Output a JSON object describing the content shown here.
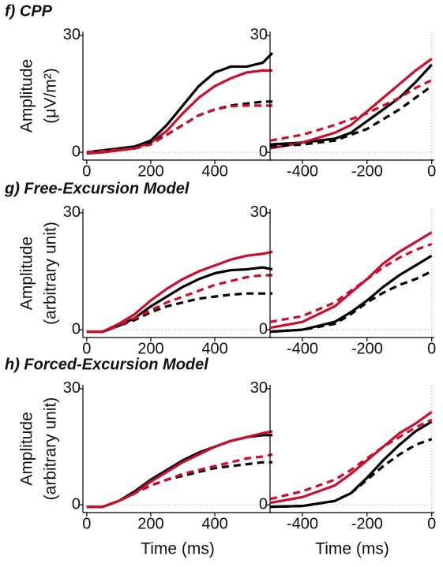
{
  "chart_data": [
    {
      "type": "line",
      "title": "f) CPP",
      "ylabel": [
        "Amplitude",
        "(μV/m²)"
      ],
      "x": [
        0,
        50,
        100,
        150,
        200,
        250,
        300,
        350,
        400,
        450,
        500,
        550,
        580
      ],
      "xlim": [
        -12,
        580
      ],
      "xticks": [
        0,
        200,
        400
      ],
      "ylim": [
        -2,
        31
      ],
      "yticks": [
        0,
        30
      ],
      "zero_line": [
        "y"
      ],
      "series": [
        {
          "color": "#000000",
          "dashed": false,
          "values": [
            0,
            0.5,
            1,
            1.5,
            3,
            7,
            12,
            17,
            20.5,
            22,
            22,
            23,
            25.5
          ]
        },
        {
          "color": "#c8102e",
          "dashed": false,
          "values": [
            -0.3,
            0,
            0.5,
            1,
            2.5,
            5.5,
            10,
            14,
            17,
            19,
            20.5,
            21,
            21
          ]
        },
        {
          "color": "#000000",
          "dashed": true,
          "values": [
            0,
            0.3,
            0.7,
            1,
            2.5,
            4.5,
            7,
            9.5,
            11,
            12,
            12.5,
            13,
            13
          ]
        },
        {
          "color": "#c8102e",
          "dashed": true,
          "values": [
            0,
            0.3,
            0.7,
            1,
            2,
            4.5,
            7,
            9.5,
            11,
            11.8,
            12,
            12,
            12
          ]
        }
      ]
    },
    {
      "type": "line",
      "x": [
        -500,
        -400,
        -300,
        -250,
        -200,
        -150,
        -100,
        -50,
        0
      ],
      "xlim": [
        -500,
        8
      ],
      "xticks": [
        -400,
        -200,
        0
      ],
      "ylim": [
        -2,
        31
      ],
      "yticks": [
        0,
        30
      ],
      "zero_line": [
        "x",
        "y"
      ],
      "series": [
        {
          "color": "#000000",
          "dashed": false,
          "values": [
            2,
            2.5,
            3.5,
            5,
            8,
            11,
            14,
            18,
            22.5
          ]
        },
        {
          "color": "#c8102e",
          "dashed": false,
          "values": [
            1,
            2.5,
            5,
            7,
            10.5,
            14,
            17.5,
            21,
            24
          ]
        },
        {
          "color": "#000000",
          "dashed": true,
          "values": [
            1.5,
            2,
            3,
            4.5,
            6,
            8.5,
            11,
            14,
            17
          ]
        },
        {
          "color": "#c8102e",
          "dashed": true,
          "values": [
            3,
            4.5,
            7,
            8.5,
            10,
            12,
            14,
            16.5,
            18.5
          ]
        }
      ]
    },
    {
      "type": "line",
      "title": "g) Free-Excursion Model",
      "ylabel": [
        "Amplitude",
        "(arbitrary unit)"
      ],
      "x": [
        0,
        50,
        100,
        150,
        200,
        250,
        300,
        350,
        400,
        450,
        500,
        550,
        580
      ],
      "xlim": [
        -12,
        580
      ],
      "xticks": [
        0,
        200,
        400
      ],
      "ylim": [
        -2,
        31
      ],
      "yticks": [
        0,
        30
      ],
      "zero_line": [
        "y"
      ],
      "series": [
        {
          "color": "#000000",
          "dashed": false,
          "values": [
            -0.5,
            -0.5,
            1,
            3,
            6,
            8.5,
            11,
            13,
            14.5,
            15.3,
            15.5,
            16,
            15.5
          ]
        },
        {
          "color": "#c8102e",
          "dashed": false,
          "values": [
            -0.5,
            -0.5,
            1.5,
            4,
            7.5,
            10.5,
            13,
            15,
            16.5,
            18,
            19,
            19.5,
            20
          ]
        },
        {
          "color": "#000000",
          "dashed": true,
          "values": [
            -0.5,
            -0.5,
            1,
            2.5,
            4.5,
            6,
            7,
            8,
            8.5,
            9,
            9.3,
            9.3,
            9.3
          ]
        },
        {
          "color": "#c8102e",
          "dashed": true,
          "values": [
            -0.5,
            -0.5,
            1,
            3,
            5,
            7,
            8.5,
            10,
            11.5,
            12.5,
            13.5,
            14,
            14
          ]
        }
      ]
    },
    {
      "type": "line",
      "x": [
        -500,
        -400,
        -300,
        -250,
        -200,
        -150,
        -100,
        -50,
        0
      ],
      "xlim": [
        -500,
        8
      ],
      "xticks": [
        -400,
        -200,
        0
      ],
      "ylim": [
        -2,
        31
      ],
      "yticks": [
        0,
        30
      ],
      "zero_line": [
        "x",
        "y"
      ],
      "series": [
        {
          "color": "#000000",
          "dashed": false,
          "values": [
            -0.5,
            0,
            2,
            4.5,
            7.5,
            11,
            14,
            16.5,
            19
          ]
        },
        {
          "color": "#c8102e",
          "dashed": false,
          "values": [
            0.5,
            2,
            6,
            9.5,
            13,
            17,
            20,
            22.5,
            25
          ]
        },
        {
          "color": "#000000",
          "dashed": true,
          "values": [
            -0.5,
            0,
            1.5,
            4,
            7,
            9.5,
            11.5,
            13,
            15
          ]
        },
        {
          "color": "#c8102e",
          "dashed": true,
          "values": [
            2,
            3.5,
            7,
            10,
            13,
            16,
            18.5,
            20.5,
            22
          ]
        }
      ]
    },
    {
      "type": "line",
      "title": "h) Forced-Excursion Model",
      "ylabel": [
        "Amplitude",
        "(arbitrary unit)"
      ],
      "xlabel": "Time (ms)",
      "x": [
        0,
        50,
        100,
        150,
        200,
        250,
        300,
        350,
        400,
        450,
        500,
        550,
        580
      ],
      "xlim": [
        -12,
        580
      ],
      "xticks": [
        0,
        200,
        400
      ],
      "ylim": [
        -2,
        31
      ],
      "yticks": [
        0,
        30
      ],
      "zero_line": [
        "y"
      ],
      "series": [
        {
          "color": "#000000",
          "dashed": false,
          "values": [
            -0.5,
            -0.5,
            1,
            3.5,
            6.5,
            9,
            11.5,
            13.5,
            15,
            16.5,
            17.5,
            18,
            18
          ]
        },
        {
          "color": "#c8102e",
          "dashed": false,
          "values": [
            -0.5,
            -0.5,
            1,
            3,
            6,
            8.5,
            11,
            13,
            15,
            16.5,
            17.5,
            18.5,
            19
          ]
        },
        {
          "color": "#000000",
          "dashed": true,
          "values": [
            -0.5,
            -0.5,
            1,
            3,
            5,
            6.5,
            7.5,
            8.5,
            9.5,
            10,
            10.5,
            11,
            11
          ]
        },
        {
          "color": "#c8102e",
          "dashed": true,
          "values": [
            -0.5,
            -0.5,
            1,
            3,
            5,
            6.5,
            8,
            9,
            10,
            11,
            12,
            12.5,
            13
          ]
        }
      ]
    },
    {
      "type": "line",
      "xlabel": "Time (ms)",
      "x": [
        -500,
        -400,
        -300,
        -250,
        -200,
        -150,
        -100,
        -50,
        0
      ],
      "xlim": [
        -500,
        8
      ],
      "xticks": [
        -400,
        -200,
        0
      ],
      "ylim": [
        -2,
        31
      ],
      "yticks": [
        0,
        30
      ],
      "zero_line": [
        "x",
        "y"
      ],
      "series": [
        {
          "color": "#000000",
          "dashed": false,
          "values": [
            -0.5,
            -0.3,
            1,
            3,
            7,
            11.5,
            15.5,
            19,
            21.5
          ]
        },
        {
          "color": "#c8102e",
          "dashed": false,
          "values": [
            0.5,
            2,
            5,
            8,
            11.5,
            15,
            18.5,
            21,
            24
          ]
        },
        {
          "color": "#000000",
          "dashed": true,
          "values": [
            -0.5,
            -0.3,
            1,
            3,
            6.5,
            10,
            13,
            15.5,
            17
          ]
        },
        {
          "color": "#c8102e",
          "dashed": true,
          "values": [
            1.5,
            3.5,
            6.5,
            9,
            12,
            15,
            17.5,
            20,
            22
          ]
        }
      ]
    }
  ]
}
